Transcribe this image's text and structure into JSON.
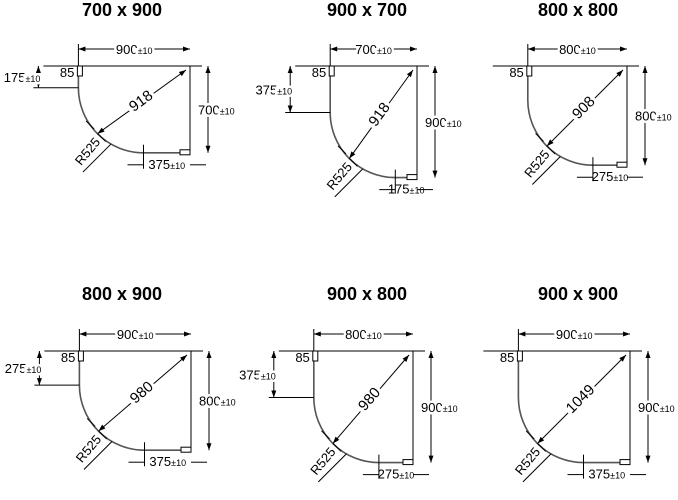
{
  "panels": [
    {
      "title": "700 x 900",
      "width_mm": 900,
      "depth_mm": 700,
      "width_label": "900",
      "depth_label": "700",
      "tolerance": "±10",
      "offset_left": "175",
      "offset_bottom": "375",
      "profile": "85",
      "radius": "R525",
      "diagonal": "918"
    },
    {
      "title": "900 x 700",
      "width_mm": 700,
      "depth_mm": 900,
      "width_label": "700",
      "depth_label": "900",
      "tolerance": "±10",
      "offset_left": "375",
      "offset_bottom": "175",
      "profile": "85",
      "radius": "R525",
      "diagonal": "918"
    },
    {
      "title": "800 x 800",
      "width_mm": 800,
      "depth_mm": 800,
      "width_label": "800",
      "depth_label": "800",
      "tolerance": "±10",
      "offset_left": "",
      "offset_bottom": "275",
      "profile": "85",
      "radius": "R525",
      "diagonal": "908"
    },
    {
      "title": "800 x 900",
      "width_mm": 900,
      "depth_mm": 800,
      "width_label": "900",
      "depth_label": "800",
      "tolerance": "±10",
      "offset_left": "275",
      "offset_bottom": "375",
      "profile": "85",
      "radius": "R525",
      "diagonal": "980"
    },
    {
      "title": "900 x 800",
      "width_mm": 800,
      "depth_mm": 900,
      "width_label": "800",
      "depth_label": "900",
      "tolerance": "±10",
      "offset_left": "375",
      "offset_bottom": "275",
      "profile": "85",
      "radius": "R525",
      "diagonal": "980"
    },
    {
      "title": "900 x 900",
      "width_mm": 900,
      "depth_mm": 900,
      "width_label": "900",
      "depth_label": "900",
      "tolerance": "±10",
      "offset_left": "",
      "offset_bottom": "375",
      "profile": "85",
      "radius": "R525",
      "diagonal": "1049"
    }
  ]
}
